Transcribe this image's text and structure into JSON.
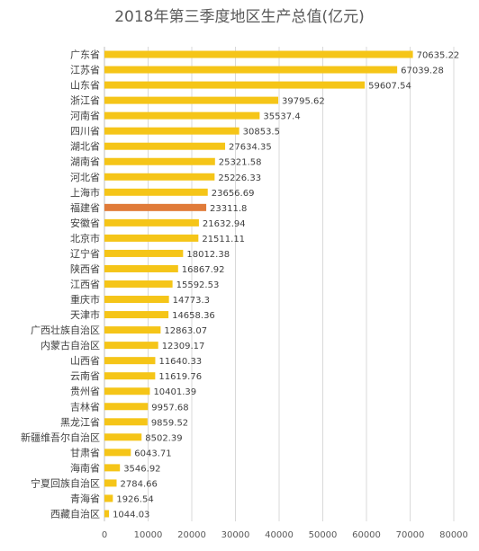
{
  "chart_data": {
    "type": "bar",
    "orientation": "horizontal",
    "title": "2018年第三季度地区生产总值(亿元)",
    "xlabel": "",
    "ylabel": "",
    "xlim": [
      0,
      80000
    ],
    "ticks": [
      0,
      10000,
      20000,
      30000,
      40000,
      50000,
      60000,
      70000,
      80000
    ],
    "grid": true,
    "legend": "none",
    "categories": [
      "广东省",
      "江苏省",
      "山东省",
      "浙江省",
      "河南省",
      "四川省",
      "湖北省",
      "湖南省",
      "河北省",
      "上海市",
      "福建省",
      "安徽省",
      "北京市",
      "辽宁省",
      "陕西省",
      "江西省",
      "重庆市",
      "天津市",
      "广西壮族自治区",
      "内蒙古自治区",
      "山西省",
      "云南省",
      "贵州省",
      "吉林省",
      "黑龙江省",
      "新疆维吾尔自治区",
      "甘肃省",
      "海南省",
      "宁夏回族自治区",
      "青海省",
      "西藏自治区"
    ],
    "values": [
      70635.22,
      67039.28,
      59607.54,
      39795.62,
      35537.4,
      30853.5,
      27634.35,
      25321.58,
      25226.33,
      23656.69,
      23311.8,
      21632.94,
      21511.11,
      18012.38,
      16867.92,
      15592.53,
      14773.3,
      14658.36,
      12863.07,
      12309.17,
      11640.33,
      11619.76,
      10401.39,
      9957.68,
      9859.52,
      8502.39,
      6043.71,
      3546.92,
      2784.66,
      1926.54,
      1044.03
    ],
    "value_labels": [
      "70635.22",
      "67039.28",
      "59607.54",
      "39795.62",
      "35537.4",
      "30853.5",
      "27634.35",
      "25321.58",
      "25226.33",
      "23656.69",
      "23311.8",
      "21632.94",
      "21511.11",
      "18012.38",
      "16867.92",
      "15592.53",
      "14773.3",
      "14658.36",
      "12863.07",
      "12309.17",
      "11640.33",
      "11619.76",
      "10401.39",
      "9957.68",
      "9859.52",
      "8502.39",
      "6043.71",
      "3546.92",
      "2784.66",
      "1926.54",
      "1044.03"
    ],
    "bar_color": "#F5C518",
    "highlight_category": "福建省",
    "highlight_color": "#E07B39"
  }
}
